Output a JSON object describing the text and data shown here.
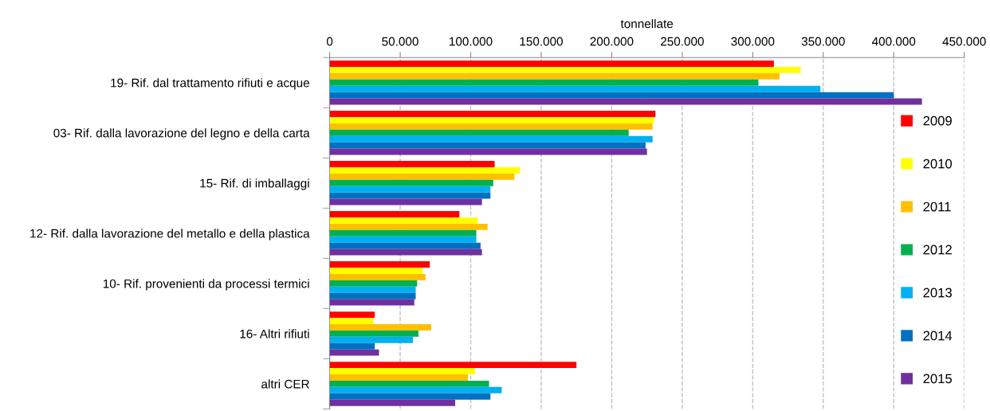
{
  "chart_data": {
    "type": "bar",
    "orientation": "horizontal",
    "xlabel": "tonnellate",
    "categories": [
      "19- Rif. dal trattamento rifiuti e acque",
      "03- Rif. dalla lavorazione del legno e della carta",
      "15- Rif. di imballaggi",
      "12- Rif. dalla lavorazione del metallo e della plastica",
      "10- Rif. provenienti da processi termici",
      "16- Altri rifiuti",
      "altri CER"
    ],
    "series": [
      {
        "name": "2009",
        "color": "#ff0000",
        "values": [
          315000,
          231000,
          117000,
          92000,
          71000,
          32000,
          175000
        ]
      },
      {
        "name": "2010",
        "color": "#ffff00",
        "values": [
          334000,
          230000,
          135000,
          105000,
          66000,
          31000,
          103000
        ]
      },
      {
        "name": "2011",
        "color": "#ffc000",
        "values": [
          319000,
          229000,
          131000,
          112000,
          68000,
          72000,
          98000
        ]
      },
      {
        "name": "2012",
        "color": "#00b050",
        "values": [
          304000,
          212000,
          116000,
          104000,
          62000,
          63000,
          113000
        ]
      },
      {
        "name": "2013",
        "color": "#00b0f0",
        "values": [
          348000,
          229000,
          114000,
          104000,
          61000,
          59000,
          122000
        ]
      },
      {
        "name": "2014",
        "color": "#0070c0",
        "values": [
          400000,
          224000,
          114000,
          107000,
          61000,
          32000,
          114000
        ]
      },
      {
        "name": "2015",
        "color": "#7030a0",
        "values": [
          420000,
          225000,
          108000,
          108000,
          60000,
          35000,
          89000
        ]
      }
    ],
    "xlim": [
      0,
      450000
    ],
    "xticks": [
      0,
      {
        "value": 50000,
        "label": "50.000"
      },
      {
        "value": 100000,
        "label": "100.000"
      },
      {
        "value": 150000,
        "label": "150.000"
      },
      {
        "value": 200000,
        "label": "200.000"
      },
      {
        "value": 250000,
        "label": "250.000"
      },
      {
        "value": 300000,
        "label": "300.000"
      },
      {
        "value": 350000,
        "label": "350.000"
      },
      {
        "value": 400000,
        "label": "400.000"
      },
      {
        "value": 450000,
        "label": "450.000"
      }
    ],
    "grid": "x",
    "legend": "right"
  }
}
